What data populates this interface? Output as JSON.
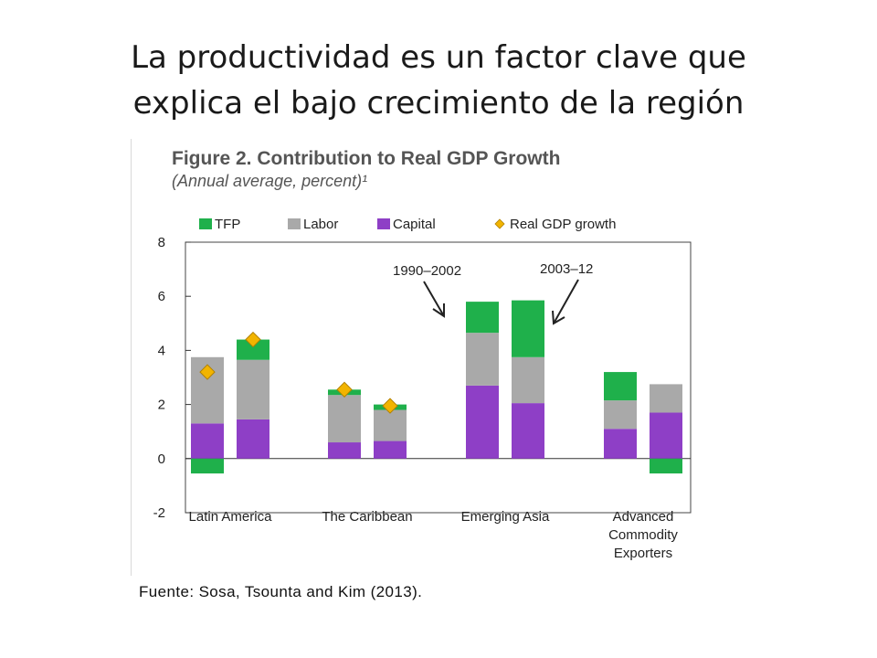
{
  "slide": {
    "title_line1": "La productividad es un factor clave que",
    "title_line2": "explica el bajo crecimiento de la región",
    "source": "Fuente: Sosa, Tsounta and Kim (2013)."
  },
  "colors": {
    "tfp": "#1fb04b",
    "labor": "#a9a9a9",
    "capital": "#8e3fc6",
    "gdp": "#f2b400",
    "axis": "#333333"
  },
  "chart_data": {
    "type": "bar",
    "stacked": true,
    "title": "Figure 2. Contribution to Real GDP Growth",
    "subtitle": "(Annual average, percent)¹",
    "ylim": [
      -2,
      8
    ],
    "yticks": [
      -2,
      0,
      2,
      4,
      6,
      8
    ],
    "grid": false,
    "legend": {
      "placement": "top",
      "entries": [
        "TFP",
        "Labor",
        "Capital",
        "Real GDP growth"
      ]
    },
    "groups": [
      {
        "label": [
          "Latin America"
        ],
        "bars": [
          {
            "period": "1990–2002",
            "capital": 1.3,
            "labor": 2.45,
            "tfp": -0.55,
            "gdp": 3.2
          },
          {
            "period": "2003–12",
            "capital": 1.45,
            "labor": 2.2,
            "tfp": 0.75,
            "gdp": 4.4
          }
        ]
      },
      {
        "label": [
          "The Caribbean"
        ],
        "bars": [
          {
            "period": "1990–2002",
            "capital": 0.6,
            "labor": 1.75,
            "tfp": 0.2,
            "gdp": 2.55
          },
          {
            "period": "2003–12",
            "capital": 0.65,
            "labor": 1.15,
            "tfp": 0.2,
            "gdp": 1.95
          }
        ]
      },
      {
        "label": [
          "Emerging Asia"
        ],
        "bars": [
          {
            "period": "1990–2002",
            "capital": 2.7,
            "labor": 1.95,
            "tfp": 1.15,
            "gdp": null
          },
          {
            "period": "2003–12",
            "capital": 2.05,
            "labor": 1.7,
            "tfp": 2.1,
            "gdp": null
          }
        ]
      },
      {
        "label": [
          "Advanced",
          "Commodity",
          "Exporters"
        ],
        "bars": [
          {
            "period": "1990–2002",
            "capital": 1.1,
            "labor": 1.05,
            "tfp": 1.05,
            "gdp": null
          },
          {
            "period": "2003–12",
            "capital": 1.7,
            "labor": 1.05,
            "tfp": -0.55,
            "gdp": null
          }
        ]
      }
    ],
    "annotations": [
      {
        "text": "1990–2002"
      },
      {
        "text": "2003–12"
      }
    ]
  }
}
